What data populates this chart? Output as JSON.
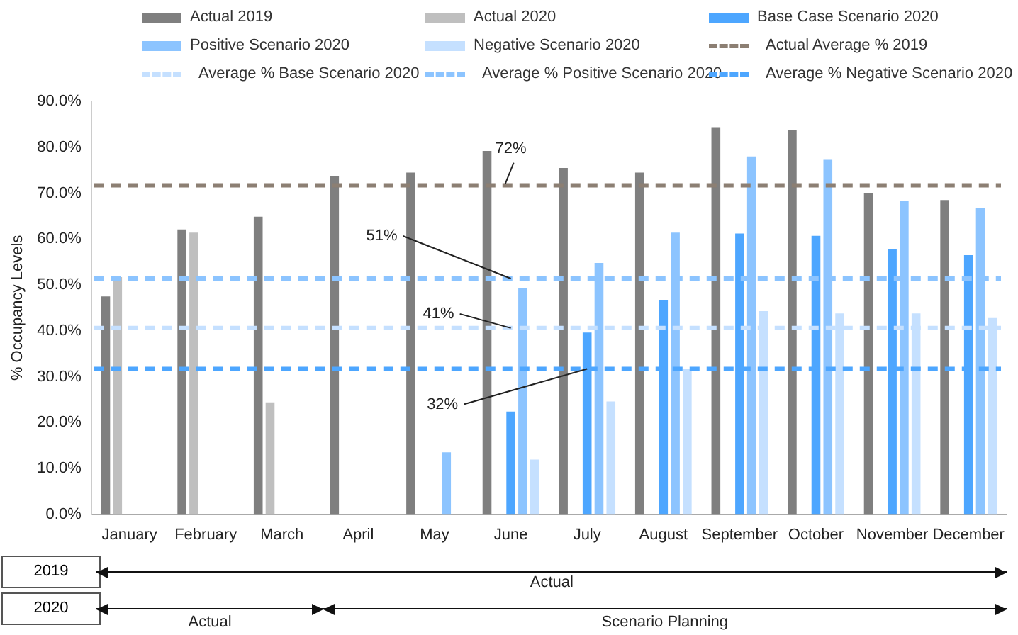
{
  "chart_data": {
    "type": "bar",
    "ylabel": "% Occupancy Levels",
    "categories": [
      "January",
      "February",
      "March",
      "April",
      "May",
      "June",
      "July",
      "August",
      "September",
      "October",
      "November",
      "December"
    ],
    "series": [
      {
        "name": "Actual 2019",
        "color": "#7f7f7f",
        "values": [
          47.5,
          62.1,
          64.9,
          73.8,
          74.5,
          79.2,
          75.5,
          74.5,
          84.4,
          83.7,
          70.1,
          68.5
        ]
      },
      {
        "name": "Actual 2020",
        "color": "#bfbfbf",
        "values": [
          51.7,
          61.4,
          24.4,
          null,
          null,
          null,
          null,
          null,
          null,
          null,
          null,
          null
        ]
      },
      {
        "name": "Base Case Scenario 2020",
        "color": "#4da6ff",
        "values": [
          null,
          null,
          null,
          null,
          null,
          22.4,
          39.6,
          46.6,
          61.2,
          60.7,
          57.8,
          56.5
        ]
      },
      {
        "name": "Positive Scenario 2020",
        "color": "#8cc4ff",
        "values": [
          null,
          null,
          null,
          null,
          13.5,
          49.4,
          54.8,
          61.4,
          78.0,
          77.3,
          68.4,
          66.8
        ]
      },
      {
        "name": "Negative Scenario 2020",
        "color": "#c5e0ff",
        "values": [
          null,
          null,
          null,
          null,
          null,
          11.9,
          24.6,
          31.6,
          44.3,
          43.8,
          43.8,
          42.8
        ]
      }
    ],
    "ref_lines": [
      {
        "axis": "y",
        "value": 71.7,
        "label": "Actual Average % 2019",
        "color": "#8c7f73",
        "line_style": "dashed"
      },
      {
        "axis": "y",
        "value": 40.6,
        "label": "Average % Base Scenario 2020",
        "color": "#c5e0ff",
        "line_style": "dashed"
      },
      {
        "axis": "y",
        "value": 51.4,
        "label": "Average % Positive Scenario 2020",
        "color": "#8cc4ff",
        "line_style": "dashed"
      },
      {
        "axis": "y",
        "value": 31.7,
        "label": "Average % Negative Scenario 2020",
        "color": "#4da6ff",
        "line_style": "dashed"
      }
    ],
    "annotations": [
      {
        "text": "72%",
        "x": "June",
        "y": 71.7
      },
      {
        "text": "51%",
        "x": "June",
        "y": 51.4
      },
      {
        "text": "41%",
        "x": "June",
        "y": 40.6
      },
      {
        "text": "32%",
        "x": "July",
        "y": 31.7
      },
      "2019",
      "Actual",
      "2020",
      "Actual",
      "Scenario Planning"
    ],
    "ylim": [
      0,
      90
    ],
    "yticks": [
      {
        "value": 0,
        "label": "0.0%"
      },
      {
        "value": 10,
        "label": "10.0%"
      },
      {
        "value": 20,
        "label": "20.0%"
      },
      {
        "value": 30,
        "label": "30.0%"
      },
      {
        "value": 40,
        "label": "40.0%"
      },
      {
        "value": 50,
        "label": "50.0%"
      },
      {
        "value": 60,
        "label": "60.0%"
      },
      {
        "value": 70,
        "label": "70.0%"
      },
      {
        "value": 80,
        "label": "80.0%"
      },
      {
        "value": 90,
        "label": "90.0%"
      }
    ],
    "grid": false,
    "legend": "top"
  }
}
